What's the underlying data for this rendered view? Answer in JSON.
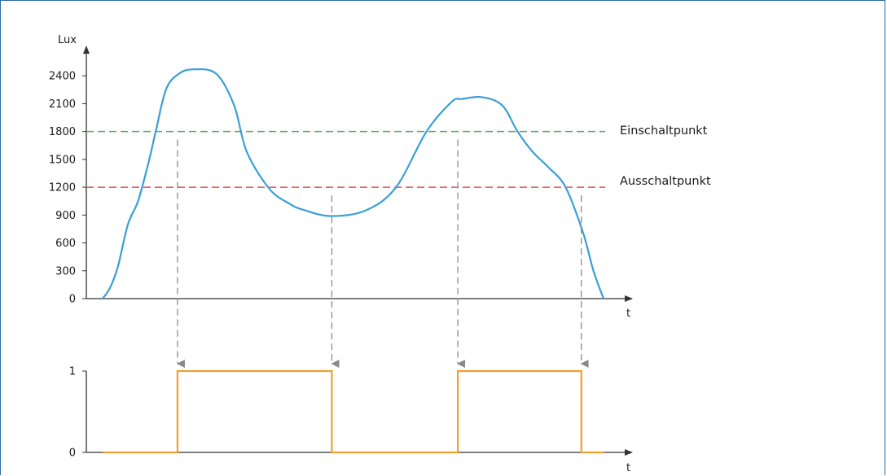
{
  "chart_data": [
    {
      "type": "line",
      "ylabel": "Lux",
      "xlabel": "t",
      "yticks": [
        "0",
        "300",
        "600",
        "900",
        "1200",
        "1500",
        "1800",
        "2100",
        "2400"
      ],
      "ylim": [
        0,
        2650
      ],
      "thresholds": [
        {
          "label": "Einschaltpunkt",
          "value": 1800,
          "color": "#4caf50"
        },
        {
          "label": "Ausschaltpunkt",
          "value": 1200,
          "color": "#d9534f"
        }
      ],
      "curve_color": "#3a9fd6",
      "series": [
        {
          "x": [
            0,
            1.5,
            3,
            5,
            7,
            9,
            10.5,
            12.5,
            15,
            18,
            22.5,
            26,
            28.5,
            33,
            37,
            39.5,
            45,
            52,
            58,
            64,
            69,
            71,
            75,
            79,
            82,
            85,
            88,
            91.5,
            95,
            97,
            99
          ],
          "y": [
            0,
            120,
            340,
            800,
            1050,
            1450,
            1800,
            2250,
            2420,
            2470,
            2420,
            2080,
            1580,
            1180,
            1020,
            960,
            890,
            950,
            1200,
            1800,
            2120,
            2150,
            2170,
            2080,
            1800,
            1580,
            1420,
            1200,
            700,
            300,
            0
          ]
        }
      ],
      "switch_times": [
        14.8,
        45.3,
        70.2,
        94.6
      ]
    },
    {
      "type": "line",
      "xlabel": "t",
      "yticks": [
        "0",
        "1"
      ],
      "ylim": [
        0,
        1
      ],
      "step_color": "#f0a030",
      "series": [
        {
          "x": [
            0,
            14.8,
            14.8,
            45.3,
            45.3,
            70.2,
            70.2,
            94.6,
            94.6,
            99
          ],
          "y": [
            0,
            0,
            1,
            1,
            0,
            0,
            1,
            1,
            0,
            0
          ]
        }
      ]
    }
  ]
}
